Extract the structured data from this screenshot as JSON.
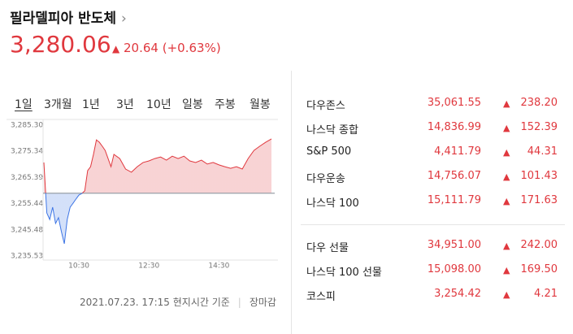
{
  "header": {
    "title": "필라델피아 반도체",
    "price": "3,280.06",
    "change": "20.64",
    "change_pct": "(+0.63%)"
  },
  "tabs": [
    "1일",
    "3개월",
    "1년",
    "3년",
    "10년",
    "일봉",
    "주봉",
    "월봉"
  ],
  "chart_data": {
    "type": "line",
    "x": [
      "09:30",
      "09:35",
      "09:40",
      "09:45",
      "09:50",
      "09:55",
      "10:00",
      "10:05",
      "10:10",
      "10:15",
      "10:20",
      "10:25",
      "10:30",
      "10:35",
      "10:40",
      "10:45",
      "10:50",
      "10:55",
      "11:00",
      "11:05",
      "11:10",
      "11:15",
      "11:20",
      "11:25",
      "11:30",
      "11:40",
      "11:50",
      "12:00",
      "12:10",
      "12:20",
      "12:30",
      "12:40",
      "12:50",
      "13:00",
      "13:10",
      "13:20",
      "13:30",
      "13:40",
      "13:50",
      "14:00",
      "14:10",
      "14:20",
      "14:30",
      "14:40",
      "14:50",
      "15:00",
      "15:10",
      "15:20",
      "15:30",
      "15:40",
      "15:50",
      "16:00"
    ],
    "values": [
      3271.1,
      3251.9,
      3249.4,
      3254.1,
      3247.9,
      3250.1,
      3244.8,
      3240.2,
      3249.4,
      3254.1,
      3255.6,
      3257.2,
      3258.7,
      3259.3,
      3260.3,
      3268.0,
      3269.5,
      3274.2,
      3279.7,
      3278.8,
      3277.3,
      3275.7,
      3272.6,
      3269.5,
      3274.2,
      3272.6,
      3268.6,
      3267.4,
      3269.5,
      3271.1,
      3271.7,
      3272.6,
      3273.2,
      3272.0,
      3273.5,
      3272.6,
      3273.5,
      3271.7,
      3271.1,
      3272.0,
      3270.5,
      3271.1,
      3270.2,
      3269.5,
      3268.9,
      3269.5,
      3268.6,
      3272.6,
      3275.7,
      3277.3,
      3278.8,
      3280.06
    ],
    "reference": 3259.42,
    "up_color": "#e0383e",
    "down_color": "#3d75e5",
    "xlim": [
      "09:30",
      "16:00"
    ],
    "xticks": [
      "10:30",
      "12:30",
      "14:30"
    ],
    "ylim": [
      3235.53,
      3285.3
    ],
    "yticks": [
      {
        "value": 3285.3,
        "label": "3,285.30"
      },
      {
        "value": 3275.34,
        "label": "3,275.34"
      },
      {
        "value": 3265.39,
        "label": "3,265.39"
      },
      {
        "value": 3255.44,
        "label": "3,255.44"
      },
      {
        "value": 3245.48,
        "label": "3,245.48"
      },
      {
        "value": 3235.53,
        "label": "3,235.53"
      }
    ]
  },
  "footer": {
    "timestamp": "2021.07.23. 17:15 현지시간 기준",
    "status": "장마감"
  },
  "quotes": [
    [
      {
        "name": "다우존스",
        "value": "35,061.55",
        "change": "238.20"
      },
      {
        "name": "나스닥 종합",
        "value": "14,836.99",
        "change": "152.39"
      },
      {
        "name": "S&P 500",
        "value": "4,411.79",
        "change": "44.31"
      },
      {
        "name": "다우운송",
        "value": "14,756.07",
        "change": "101.43"
      },
      {
        "name": "나스닥 100",
        "value": "15,111.79",
        "change": "171.63"
      }
    ],
    [
      {
        "name": "다우 선물",
        "value": "34,951.00",
        "change": "242.00"
      },
      {
        "name": "나스닥 100 선물",
        "value": "15,098.00",
        "change": "169.50"
      },
      {
        "name": "코스피",
        "value": "3,254.42",
        "change": "4.21"
      }
    ]
  ]
}
